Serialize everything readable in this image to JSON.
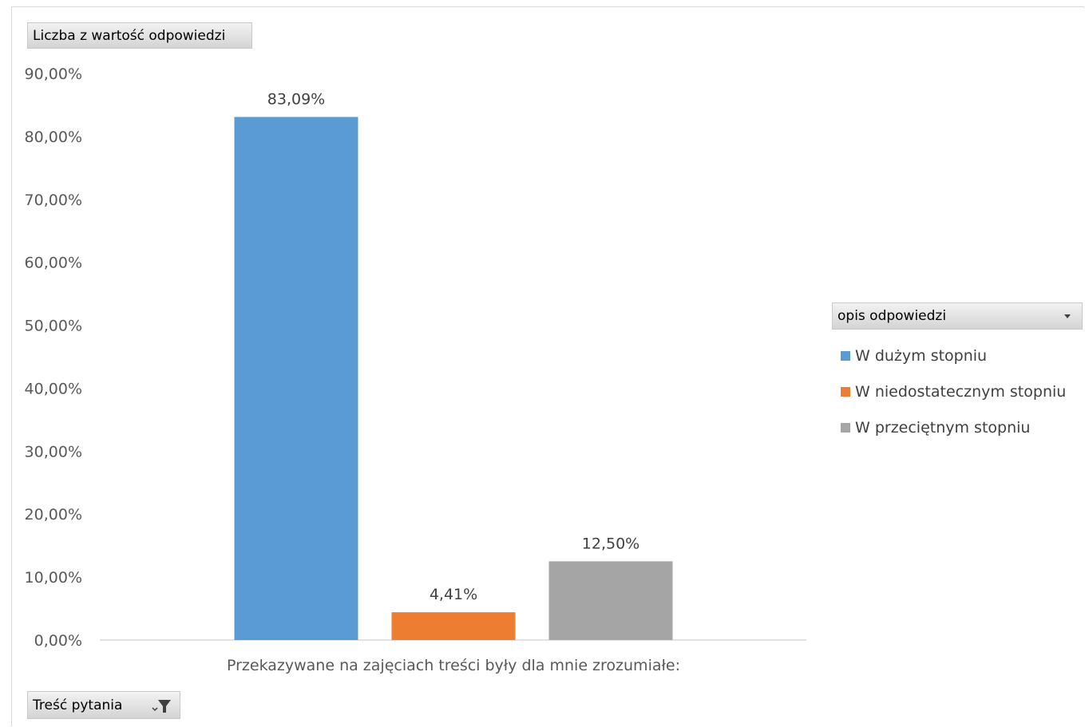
{
  "pivot": {
    "value_field": "Liczba z wartość odpowiedzi",
    "row_field": "Treść pytania",
    "legend_field": "opis odpowiedzi"
  },
  "icons": {
    "row_field_filter": "filter-icon",
    "legend_field_dropdown": "chevron-down-icon"
  },
  "chart_data": {
    "type": "bar",
    "title": "",
    "xlabel": "",
    "ylabel": "",
    "categories": [
      "Przekazywane na zajęciach treści były dla mnie zrozumiałe:"
    ],
    "series": [
      {
        "name": "W dużym stopniu",
        "values": [
          83.09
        ],
        "label": "83,09%",
        "color": "#5b9bd5"
      },
      {
        "name": "W niedostatecznym stopniu",
        "values": [
          4.41
        ],
        "label": "4,41%",
        "color": "#ed7d31"
      },
      {
        "name": "W przeciętnym stopniu",
        "values": [
          12.5
        ],
        "label": "12,50%",
        "color": "#a5a5a5"
      }
    ],
    "ylim": [
      0,
      90
    ],
    "yticks": [
      "0,00%",
      "10,00%",
      "20,00%",
      "30,00%",
      "40,00%",
      "50,00%",
      "60,00%",
      "70,00%",
      "80,00%",
      "90,00%"
    ],
    "grid": false,
    "legend_position": "right"
  }
}
